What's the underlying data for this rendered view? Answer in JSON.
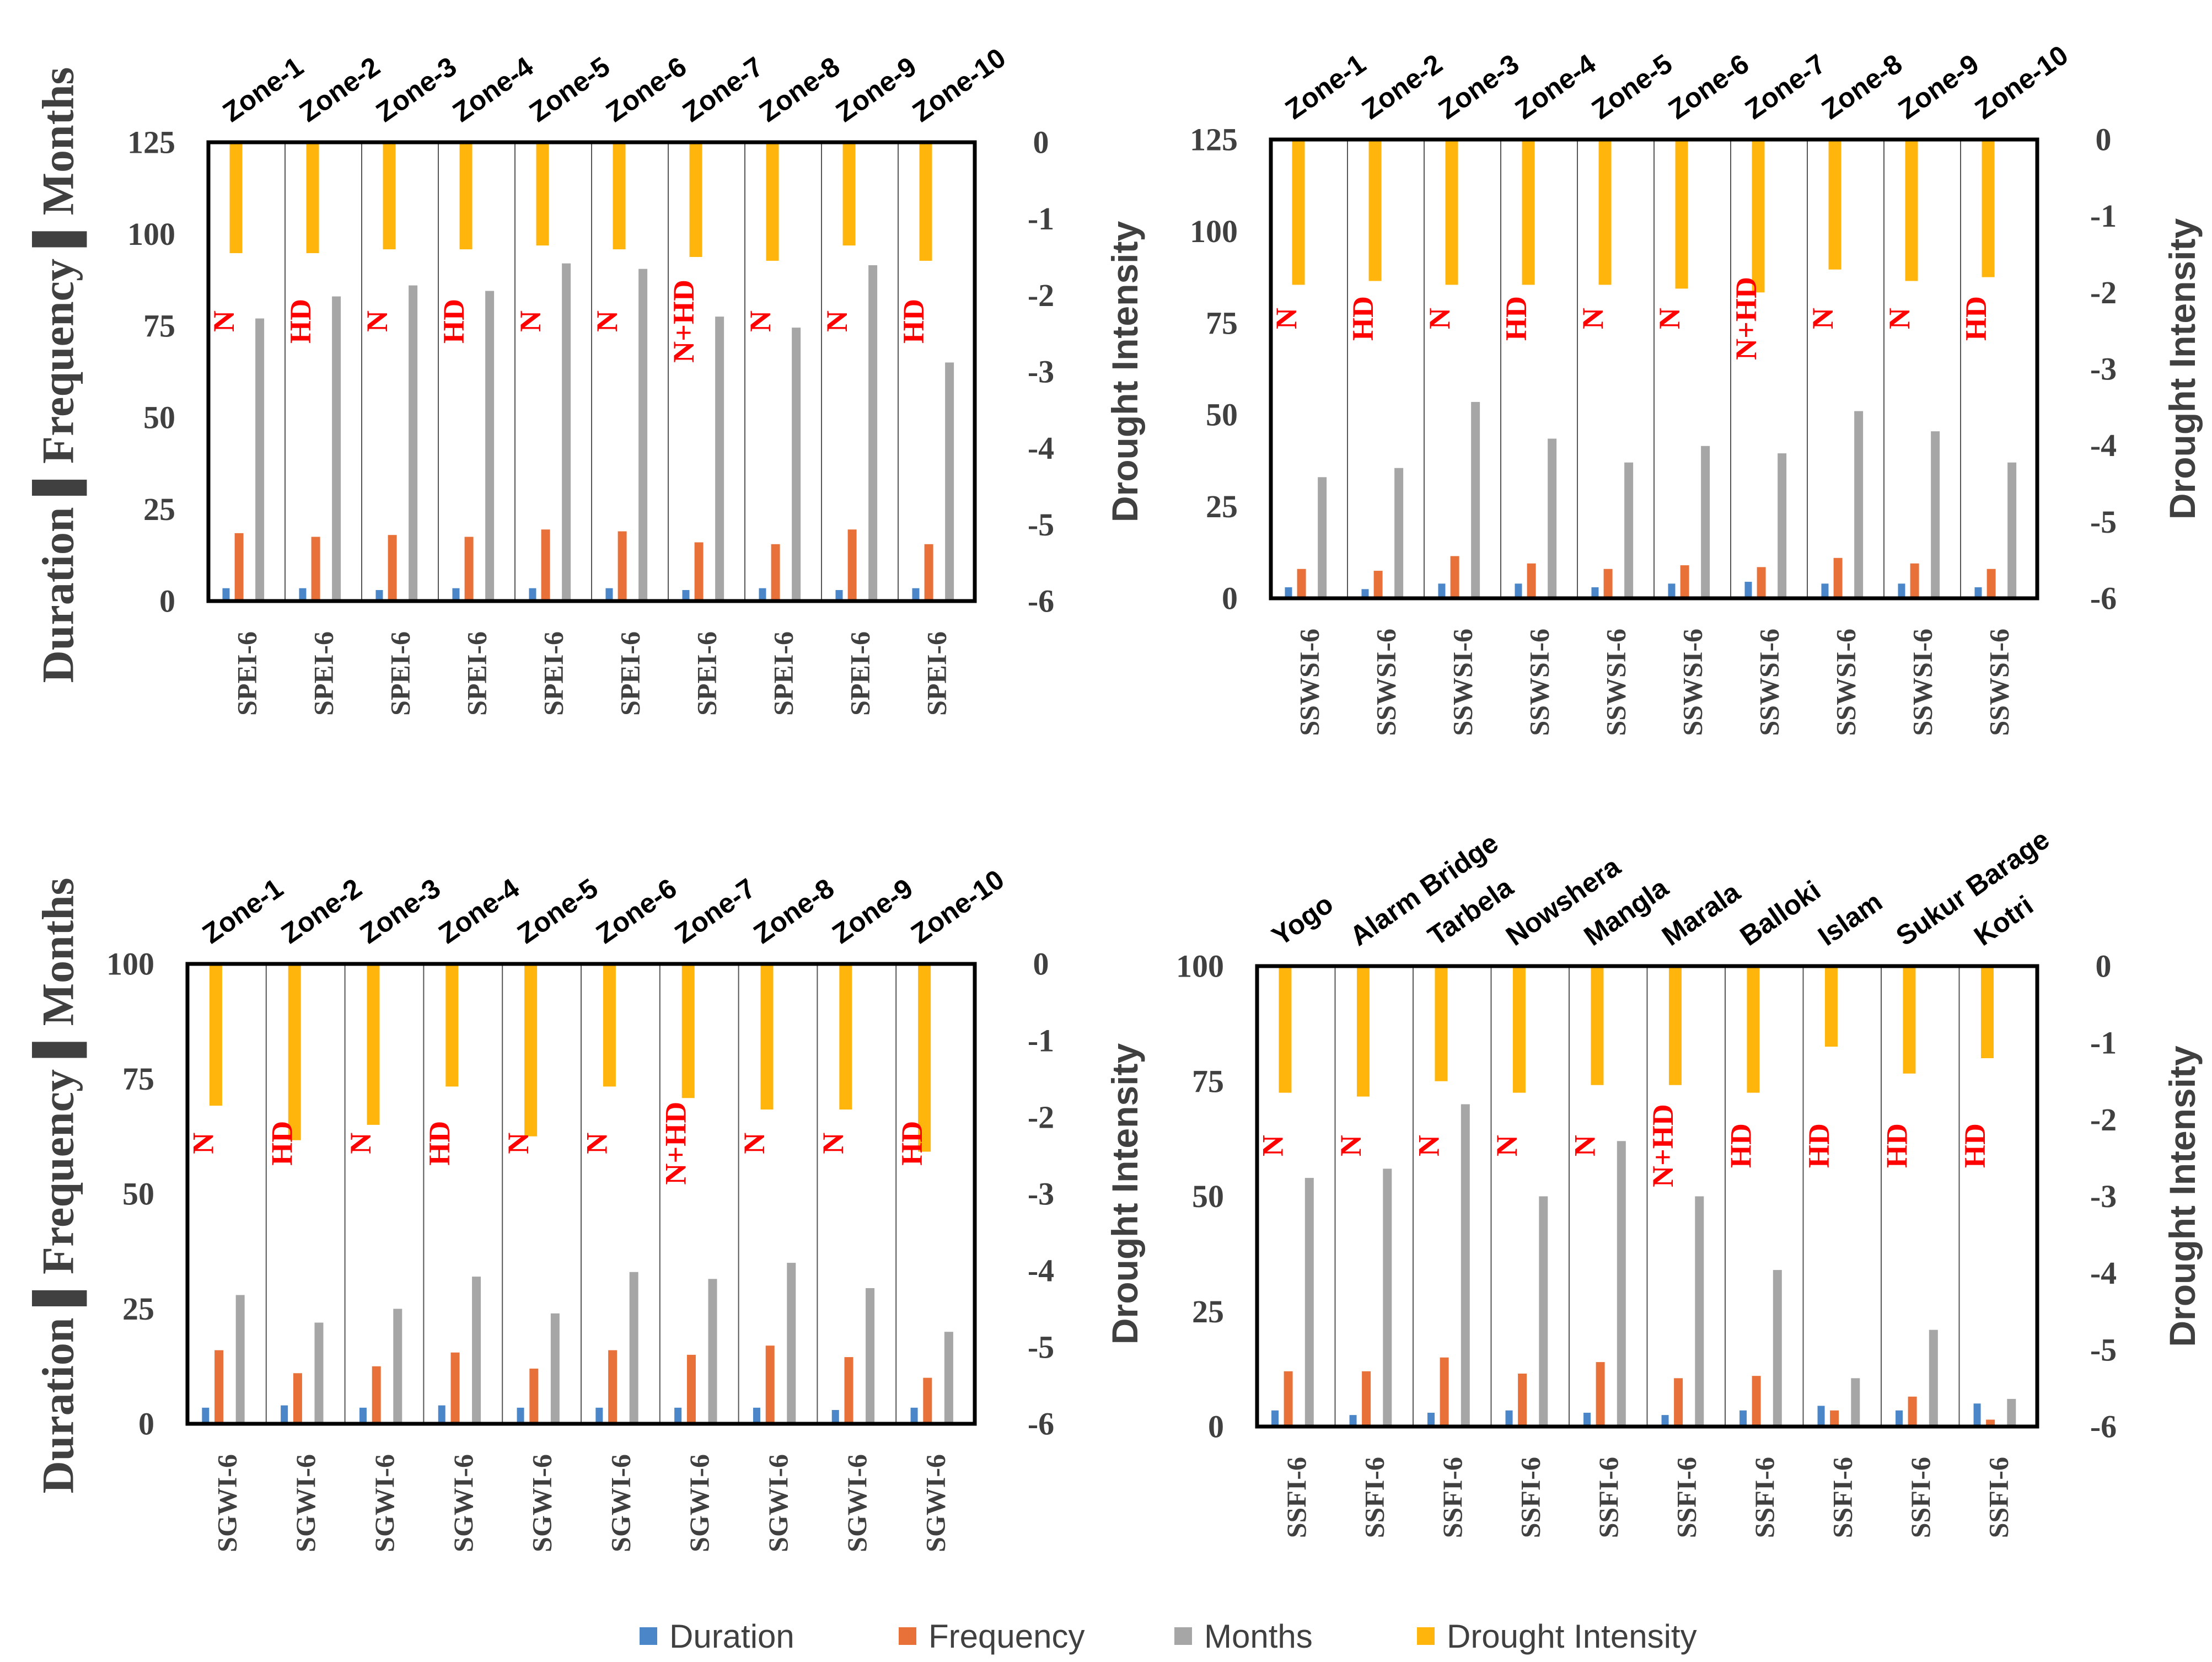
{
  "colors": {
    "duration": "#4a86c8",
    "frequency": "#e8713a",
    "months": "#a6a6a6",
    "intensity": "#ffb50c",
    "annotation": "#ff0000",
    "axis": "#404040"
  },
  "legend": {
    "duration": "Duration",
    "frequency": "Frequency",
    "months": "Months",
    "intensity": "Drought Intensity"
  },
  "chart_data": [
    {
      "type": "bar",
      "title": "SPEI-6",
      "ylabel": "Duration ▌Frequency ▌Months",
      "y2label": "Drought Intensity",
      "ylim": [
        0,
        125
      ],
      "y_ticks": [
        "0",
        "25",
        "50",
        "75",
        "100",
        "125"
      ],
      "y2lim": [
        -6,
        0
      ],
      "y2_ticks": [
        "0",
        "-1",
        "-2",
        "-3",
        "-4",
        "-5",
        "-6"
      ],
      "top_labels": [
        "Zone-1",
        "Zone-2",
        "Zone-3",
        "Zone-4",
        "Zone-5",
        "Zone-6",
        "Zone-7",
        "Zone-8",
        "Zone-9",
        "Zone-10"
      ],
      "bottom_labels": [
        "SPEI-6",
        "SPEI-6",
        "SPEI-6",
        "SPEI-6",
        "SPEI-6",
        "SPEI-6",
        "SPEI-6",
        "SPEI-6",
        "SPEI-6",
        "SPEI-6"
      ],
      "annotations": [
        "N",
        "HD",
        "N",
        "HD",
        "N",
        "N",
        "N+HD",
        "N",
        "N",
        "HD"
      ],
      "series": [
        {
          "name": "Duration",
          "values": [
            3.5,
            3.5,
            3.0,
            3.5,
            3.5,
            3.5,
            3.0,
            3.5,
            3.0,
            3.5
          ]
        },
        {
          "name": "Frequency",
          "values": [
            18.5,
            17.5,
            18,
            17.5,
            19.5,
            19,
            16,
            15.5,
            19.5,
            15.5
          ]
        },
        {
          "name": "Months",
          "values": [
            77,
            83,
            86,
            84.5,
            92,
            90.5,
            77.5,
            74.5,
            91.5,
            65
          ]
        },
        {
          "name": "Drought Intensity",
          "values": [
            -1.45,
            -1.45,
            -1.4,
            -1.4,
            -1.35,
            -1.4,
            -1.5,
            -1.55,
            -1.35,
            -1.55
          ]
        }
      ]
    },
    {
      "type": "bar",
      "title": "SSWSI-6",
      "ylabel": "",
      "y2label": "Drought Intensity",
      "ylim": [
        0,
        125
      ],
      "y_ticks": [
        "0",
        "25",
        "50",
        "75",
        "100",
        "125"
      ],
      "y2lim": [
        -6,
        0
      ],
      "y2_ticks": [
        "0",
        "-1",
        "-2",
        "-3",
        "-4",
        "-5",
        "-6"
      ],
      "top_labels": [
        "Zone-1",
        "Zone-2",
        "Zone-3",
        "Zone-4",
        "Zone-5",
        "Zone-6",
        "Zone-7",
        "Zone-8",
        "Zone-9",
        "Zone-10"
      ],
      "bottom_labels": [
        "SSWSI-6",
        "SSWSI-6",
        "SSWSI-6",
        "SSWSI-6",
        "SSWSI-6",
        "SSWSI-6",
        "SSWSI-6",
        "SSWSI-6",
        "SSWSI-6",
        "SSWSI-6"
      ],
      "annotations": [
        "N",
        "HD",
        "N",
        "HD",
        "N",
        "N",
        "N+HD",
        "N",
        "N",
        "HD"
      ],
      "series": [
        {
          "name": "Duration",
          "values": [
            3,
            2.5,
            4,
            4,
            3,
            4,
            4.5,
            4,
            4,
            3
          ]
        },
        {
          "name": "Frequency",
          "values": [
            8,
            7.5,
            11.5,
            9.5,
            8,
            9,
            8.5,
            11,
            9.5,
            8
          ]
        },
        {
          "name": "Months",
          "values": [
            33,
            35.5,
            53.5,
            43.5,
            37,
            41.5,
            39.5,
            51,
            45.5,
            37
          ]
        },
        {
          "name": "Drought Intensity",
          "values": [
            -1.9,
            -1.85,
            -1.9,
            -1.9,
            -1.9,
            -1.95,
            -2.0,
            -1.7,
            -1.85,
            -1.8
          ]
        }
      ]
    },
    {
      "type": "bar",
      "title": "SGWI-6",
      "ylabel": "Duration ▌Frequency ▌Months",
      "y2label": "Drought Intensity",
      "ylim": [
        0,
        100
      ],
      "y_ticks": [
        "0",
        "25",
        "50",
        "75",
        "100"
      ],
      "y2lim": [
        -6,
        0
      ],
      "y2_ticks": [
        "0",
        "-1",
        "-2",
        "-3",
        "-4",
        "-5",
        "-6"
      ],
      "top_labels": [
        "Zone-1",
        "Zone-2",
        "Zone-3",
        "Zone-4",
        "Zone-5",
        "Zone-6",
        "Zone-7",
        "Zone-8",
        "Zone-9",
        "Zone-10"
      ],
      "bottom_labels": [
        "SGWI-6",
        "SGWI-6",
        "SGWI-6",
        "SGWI-6",
        "SGWI-6",
        "SGWI-6",
        "SGWI-6",
        "SGWI-6",
        "SGWI-6",
        "SGWI-6"
      ],
      "annotations": [
        "N",
        "HD",
        "N",
        "HD",
        "N",
        "N",
        "N+HD",
        "N",
        "N",
        "HD"
      ],
      "series": [
        {
          "name": "Duration",
          "values": [
            3.5,
            4,
            3.5,
            4,
            3.5,
            3.5,
            3.5,
            3.5,
            3,
            3.5
          ]
        },
        {
          "name": "Frequency",
          "values": [
            16,
            11,
            12.5,
            15.5,
            12,
            16,
            15,
            17,
            14.5,
            10
          ]
        },
        {
          "name": "Months",
          "values": [
            28,
            22,
            25,
            32,
            24,
            33,
            31.5,
            35,
            29.5,
            20
          ]
        },
        {
          "name": "Drought Intensity",
          "values": [
            -1.85,
            -2.3,
            -2.1,
            -1.6,
            -2.25,
            -1.6,
            -1.75,
            -1.9,
            -1.9,
            -2.45
          ]
        }
      ]
    },
    {
      "type": "bar",
      "title": "SSFI-6",
      "ylabel": "",
      "y2label": "Drought Intensity",
      "ylim": [
        0,
        100
      ],
      "y_ticks": [
        "0",
        "25",
        "50",
        "75",
        "100"
      ],
      "y2lim": [
        -6,
        0
      ],
      "y2_ticks": [
        "0",
        "-1",
        "-2",
        "-3",
        "-4",
        "-5",
        "-6"
      ],
      "top_labels": [
        "Yogo",
        "Alarm Bridge",
        "Tarbela",
        "Nowshera",
        "Mangla",
        "Marala",
        "Balloki",
        "Islam",
        "Sukur Barage",
        "Kotri"
      ],
      "bottom_labels": [
        "SSFI-6",
        "SSFI-6",
        "SSFI-6",
        "SSFI-6",
        "SSFI-6",
        "SSFI-6",
        "SSFI-6",
        "SSFI-6",
        "SSFI-6",
        "SSFI-6"
      ],
      "annotations": [
        "N",
        "N",
        "N",
        "N",
        "N",
        "N+HD",
        "HD",
        "HD",
        "HD",
        "HD"
      ],
      "series": [
        {
          "name": "Duration",
          "values": [
            3.5,
            2.5,
            3,
            3.5,
            3,
            2.5,
            3.5,
            4.5,
            3.5,
            5
          ]
        },
        {
          "name": "Frequency",
          "values": [
            12,
            12,
            15,
            11.5,
            14,
            10.5,
            11,
            3.5,
            6.5,
            1.5
          ]
        },
        {
          "name": "Months",
          "values": [
            54,
            56,
            70,
            50,
            62,
            50,
            34,
            10.5,
            21,
            6
          ]
        },
        {
          "name": "Drought Intensity",
          "values": [
            -1.65,
            -1.7,
            -1.5,
            -1.65,
            -1.55,
            -1.55,
            -1.65,
            -1.05,
            -1.4,
            -1.2
          ]
        }
      ]
    }
  ]
}
